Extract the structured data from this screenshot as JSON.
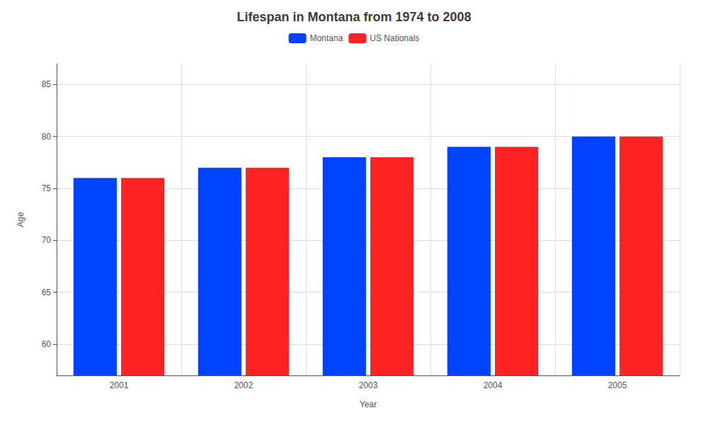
{
  "chart_data": {
    "type": "bar",
    "title": "Lifespan in Montana from 1974 to 2008",
    "xlabel": "Year",
    "ylabel": "Age",
    "categories": [
      "2001",
      "2002",
      "2003",
      "2004",
      "2005"
    ],
    "series": [
      {
        "name": "Montana",
        "color": "#0044FF",
        "values": [
          76,
          77,
          78,
          79,
          80
        ]
      },
      {
        "name": "US Nationals",
        "color": "#FF2222",
        "values": [
          76,
          77,
          78,
          79,
          80
        ]
      }
    ],
    "ylim": [
      57,
      87
    ],
    "yticks": [
      60,
      65,
      70,
      75,
      80,
      85
    ],
    "grid": true,
    "legend": "top"
  }
}
